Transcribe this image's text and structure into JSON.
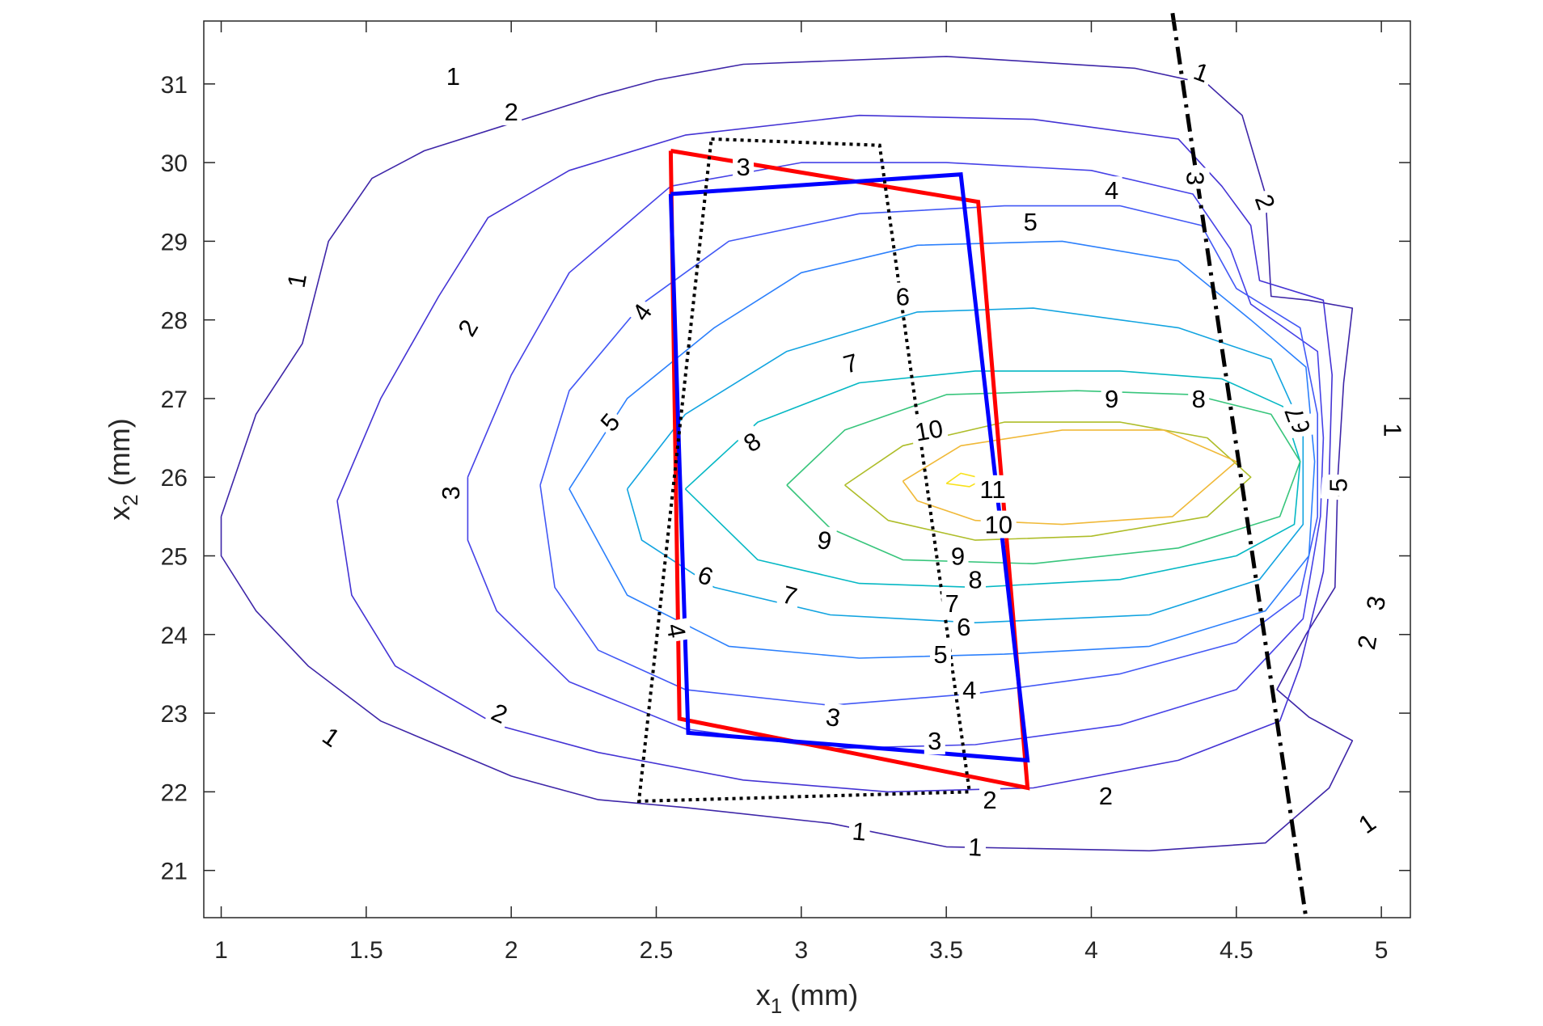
{
  "chart_data": {
    "type": "contour",
    "xlabel": {
      "main": "x",
      "sub": "1",
      "unit": " (mm)"
    },
    "ylabel": {
      "main": "x",
      "sub": "2",
      "unit": " (mm)"
    },
    "xlim": [
      0.94,
      5.1
    ],
    "ylim": [
      20.4,
      31.8
    ],
    "xticks": [
      1,
      1.5,
      2,
      2.5,
      3,
      3.5,
      4,
      4.5,
      5
    ],
    "xtick_labels": [
      "1",
      "1.5",
      "2",
      "2.5",
      "3",
      "3.5",
      "4",
      "4.5",
      "5"
    ],
    "yticks": [
      21,
      22,
      23,
      24,
      25,
      26,
      27,
      28,
      29,
      30,
      31
    ],
    "ytick_labels": [
      "21",
      "22",
      "23",
      "24",
      "25",
      "26",
      "27",
      "28",
      "29",
      "30",
      "31"
    ],
    "grid": false,
    "contour_levels": [
      {
        "level": 1,
        "color": "#3e26a8",
        "points": [
          [
            1.0,
            25.5
          ],
          [
            1.12,
            26.8
          ],
          [
            1.28,
            27.7
          ],
          [
            1.37,
            29.0
          ],
          [
            1.52,
            29.8
          ],
          [
            1.7,
            30.15
          ],
          [
            2.3,
            30.85
          ],
          [
            2.5,
            31.05
          ],
          [
            2.8,
            31.25
          ],
          [
            3.5,
            31.35
          ],
          [
            4.15,
            31.2
          ],
          [
            4.4,
            31.0
          ],
          [
            4.52,
            30.6
          ],
          [
            4.6,
            29.6
          ],
          [
            4.62,
            28.3
          ],
          [
            4.75,
            28.25
          ],
          [
            4.9,
            28.15
          ],
          [
            4.87,
            27.2
          ],
          [
            4.85,
            26.0
          ],
          [
            4.84,
            24.6
          ],
          [
            4.74,
            24.0
          ],
          [
            4.64,
            23.3
          ],
          [
            4.75,
            22.95
          ],
          [
            4.9,
            22.65
          ],
          [
            4.82,
            22.05
          ],
          [
            4.6,
            21.35
          ],
          [
            4.2,
            21.25
          ],
          [
            3.5,
            21.3
          ],
          [
            3.1,
            21.6
          ],
          [
            2.6,
            21.8
          ],
          [
            2.3,
            21.9
          ],
          [
            2.0,
            22.2
          ],
          [
            1.55,
            22.9
          ],
          [
            1.3,
            23.6
          ],
          [
            1.12,
            24.3
          ],
          [
            1.0,
            25.0
          ],
          [
            1.0,
            25.5
          ]
        ]
      },
      {
        "level": 2,
        "color": "#4433d4",
        "points": [
          [
            1.4,
            25.7
          ],
          [
            1.55,
            27.0
          ],
          [
            1.75,
            28.3
          ],
          [
            1.92,
            29.3
          ],
          [
            2.2,
            29.9
          ],
          [
            2.6,
            30.35
          ],
          [
            3.2,
            30.6
          ],
          [
            3.8,
            30.55
          ],
          [
            4.3,
            30.3
          ],
          [
            4.45,
            29.7
          ],
          [
            4.55,
            29.2
          ],
          [
            4.58,
            28.5
          ],
          [
            4.8,
            28.25
          ],
          [
            4.83,
            27.3
          ],
          [
            4.82,
            26.0
          ],
          [
            4.8,
            24.8
          ],
          [
            4.72,
            23.6
          ],
          [
            4.65,
            22.9
          ],
          [
            4.3,
            22.4
          ],
          [
            3.8,
            22.05
          ],
          [
            3.3,
            22.0
          ],
          [
            2.8,
            22.15
          ],
          [
            2.3,
            22.5
          ],
          [
            1.95,
            22.85
          ],
          [
            1.6,
            23.6
          ],
          [
            1.45,
            24.5
          ],
          [
            1.4,
            25.7
          ]
        ]
      },
      {
        "level": 3,
        "color": "#4642e7",
        "points": [
          [
            1.85,
            26.0
          ],
          [
            2.0,
            27.3
          ],
          [
            2.2,
            28.6
          ],
          [
            2.55,
            29.7
          ],
          [
            3.0,
            30.0
          ],
          [
            3.5,
            30.0
          ],
          [
            4.0,
            29.9
          ],
          [
            4.35,
            29.6
          ],
          [
            4.48,
            28.9
          ],
          [
            4.55,
            28.2
          ],
          [
            4.78,
            27.6
          ],
          [
            4.8,
            26.5
          ],
          [
            4.79,
            25.5
          ],
          [
            4.73,
            24.2
          ],
          [
            4.5,
            23.3
          ],
          [
            4.1,
            22.85
          ],
          [
            3.6,
            22.6
          ],
          [
            3.1,
            22.55
          ],
          [
            2.6,
            22.8
          ],
          [
            2.2,
            23.4
          ],
          [
            1.95,
            24.3
          ],
          [
            1.85,
            25.2
          ],
          [
            1.85,
            26.0
          ]
        ]
      },
      {
        "level": 4,
        "color": "#4258f5",
        "points": [
          [
            2.1,
            25.9
          ],
          [
            2.2,
            27.1
          ],
          [
            2.45,
            28.2
          ],
          [
            2.75,
            29.0
          ],
          [
            3.2,
            29.35
          ],
          [
            3.7,
            29.45
          ],
          [
            4.1,
            29.45
          ],
          [
            4.38,
            29.2
          ],
          [
            4.5,
            28.4
          ],
          [
            4.72,
            27.9
          ],
          [
            4.78,
            26.8
          ],
          [
            4.78,
            25.5
          ],
          [
            4.72,
            24.5
          ],
          [
            4.5,
            23.9
          ],
          [
            4.1,
            23.5
          ],
          [
            3.6,
            23.25
          ],
          [
            3.1,
            23.1
          ],
          [
            2.6,
            23.3
          ],
          [
            2.3,
            23.8
          ],
          [
            2.15,
            24.6
          ],
          [
            2.1,
            25.9
          ]
        ]
      },
      {
        "level": 5,
        "color": "#2c80fc",
        "points": [
          [
            2.2,
            25.85
          ],
          [
            2.4,
            27.0
          ],
          [
            2.7,
            27.9
          ],
          [
            3.0,
            28.6
          ],
          [
            3.4,
            28.95
          ],
          [
            3.9,
            29.0
          ],
          [
            4.3,
            28.75
          ],
          [
            4.55,
            28.0
          ],
          [
            4.74,
            27.4
          ],
          [
            4.77,
            26.2
          ],
          [
            4.75,
            25.0
          ],
          [
            4.6,
            24.3
          ],
          [
            4.2,
            23.85
          ],
          [
            3.7,
            23.75
          ],
          [
            3.2,
            23.7
          ],
          [
            2.75,
            23.85
          ],
          [
            2.4,
            24.5
          ],
          [
            2.2,
            25.85
          ]
        ]
      },
      {
        "level": 6,
        "color": "#12a4e0",
        "points": [
          [
            2.4,
            25.85
          ],
          [
            2.6,
            26.8
          ],
          [
            2.95,
            27.6
          ],
          [
            3.4,
            28.1
          ],
          [
            3.8,
            28.15
          ],
          [
            4.3,
            27.9
          ],
          [
            4.62,
            27.5
          ],
          [
            4.73,
            26.6
          ],
          [
            4.73,
            25.4
          ],
          [
            4.58,
            24.7
          ],
          [
            4.2,
            24.25
          ],
          [
            3.6,
            24.15
          ],
          [
            3.1,
            24.25
          ],
          [
            2.7,
            24.6
          ],
          [
            2.45,
            25.2
          ],
          [
            2.4,
            25.85
          ]
        ]
      },
      {
        "level": 7,
        "color": "#06b8c4",
        "points": [
          [
            2.6,
            25.85
          ],
          [
            2.85,
            26.7
          ],
          [
            3.2,
            27.2
          ],
          [
            3.6,
            27.35
          ],
          [
            4.1,
            27.35
          ],
          [
            4.45,
            27.25
          ],
          [
            4.66,
            26.9
          ],
          [
            4.72,
            26.2
          ],
          [
            4.7,
            25.4
          ],
          [
            4.5,
            25.0
          ],
          [
            4.1,
            24.7
          ],
          [
            3.6,
            24.6
          ],
          [
            3.2,
            24.65
          ],
          [
            2.85,
            24.95
          ],
          [
            2.6,
            25.85
          ]
        ]
      },
      {
        "level": 8,
        "color": "#38c57c",
        "points": [
          [
            2.95,
            25.9
          ],
          [
            3.15,
            26.6
          ],
          [
            3.5,
            27.05
          ],
          [
            3.95,
            27.1
          ],
          [
            4.35,
            27.05
          ],
          [
            4.62,
            26.8
          ],
          [
            4.72,
            26.2
          ],
          [
            4.65,
            25.5
          ],
          [
            4.3,
            25.1
          ],
          [
            3.8,
            24.9
          ],
          [
            3.35,
            24.95
          ],
          [
            3.1,
            25.35
          ],
          [
            2.95,
            25.9
          ]
        ]
      },
      {
        "level": 9,
        "color": "#aebd29",
        "points": [
          [
            3.15,
            25.9
          ],
          [
            3.35,
            26.4
          ],
          [
            3.7,
            26.7
          ],
          [
            4.1,
            26.7
          ],
          [
            4.4,
            26.5
          ],
          [
            4.55,
            26.0
          ],
          [
            4.4,
            25.5
          ],
          [
            4.0,
            25.25
          ],
          [
            3.6,
            25.2
          ],
          [
            3.3,
            25.45
          ],
          [
            3.15,
            25.9
          ]
        ]
      },
      {
        "level": 10,
        "color": "#f0b938",
        "points": [
          [
            3.35,
            25.95
          ],
          [
            3.55,
            26.4
          ],
          [
            3.9,
            26.6
          ],
          [
            4.25,
            26.6
          ],
          [
            4.5,
            26.2
          ],
          [
            4.28,
            25.5
          ],
          [
            3.9,
            25.4
          ],
          [
            3.6,
            25.45
          ],
          [
            3.4,
            25.7
          ],
          [
            3.35,
            25.95
          ]
        ]
      },
      {
        "level": 11,
        "color": "#f8e118",
        "points": [
          [
            3.5,
            25.92
          ],
          [
            3.55,
            26.05
          ],
          [
            3.63,
            25.98
          ],
          [
            3.58,
            25.88
          ],
          [
            3.5,
            25.92
          ]
        ]
      }
    ],
    "contour_labels": [
      {
        "text": "1",
        "x": 1.8,
        "y": 31.1,
        "angle": 0
      },
      {
        "text": "1",
        "x": 4.38,
        "y": 31.15,
        "angle": 20
      },
      {
        "text": "1",
        "x": 1.26,
        "y": 28.5,
        "angle": -80
      },
      {
        "text": "1",
        "x": 1.38,
        "y": 22.7,
        "angle": 35
      },
      {
        "text": "1",
        "x": 3.2,
        "y": 21.5,
        "angle": 5
      },
      {
        "text": "1",
        "x": 3.6,
        "y": 21.3,
        "angle": 3
      },
      {
        "text": "1",
        "x": 4.95,
        "y": 21.6,
        "angle": -35
      },
      {
        "text": "1",
        "x": 5.04,
        "y": 26.6,
        "angle": 90
      },
      {
        "text": "2",
        "x": 2.0,
        "y": 30.65,
        "angle": 0
      },
      {
        "text": "2",
        "x": 4.6,
        "y": 29.5,
        "angle": 70
      },
      {
        "text": "2",
        "x": 1.85,
        "y": 27.9,
        "angle": -60
      },
      {
        "text": "2",
        "x": 1.96,
        "y": 23.0,
        "angle": 25
      },
      {
        "text": "2",
        "x": 3.65,
        "y": 21.9,
        "angle": 0
      },
      {
        "text": "2",
        "x": 4.05,
        "y": 21.95,
        "angle": 0
      },
      {
        "text": "2",
        "x": 4.95,
        "y": 23.9,
        "angle": -80
      },
      {
        "text": "3",
        "x": 2.8,
        "y": 29.95,
        "angle": 0
      },
      {
        "text": "3",
        "x": 4.36,
        "y": 29.8,
        "angle": 90
      },
      {
        "text": "3",
        "x": 1.79,
        "y": 25.8,
        "angle": -90
      },
      {
        "text": "3",
        "x": 3.11,
        "y": 22.95,
        "angle": 10
      },
      {
        "text": "3",
        "x": 3.46,
        "y": 22.65,
        "angle": 0
      },
      {
        "text": "3",
        "x": 4.98,
        "y": 24.4,
        "angle": -80
      },
      {
        "text": "4",
        "x": 4.07,
        "y": 29.65,
        "angle": 0
      },
      {
        "text": "4",
        "x": 2.45,
        "y": 28.1,
        "angle": -55
      },
      {
        "text": "4",
        "x": 2.57,
        "y": 24.05,
        "angle": 80
      },
      {
        "text": "4",
        "x": 3.58,
        "y": 23.3,
        "angle": 0
      },
      {
        "text": "4",
        "x": 4.84,
        "y": 25.85,
        "angle": -85
      },
      {
        "text": "5",
        "x": 3.79,
        "y": 29.25,
        "angle": 0
      },
      {
        "text": "5",
        "x": 2.34,
        "y": 26.7,
        "angle": -50
      },
      {
        "text": "5",
        "x": 3.48,
        "y": 23.75,
        "angle": 0
      },
      {
        "text": "5",
        "x": 4.85,
        "y": 25.9,
        "angle": -90
      },
      {
        "text": "6",
        "x": 3.35,
        "y": 28.3,
        "angle": 0
      },
      {
        "text": "6",
        "x": 2.67,
        "y": 24.75,
        "angle": 20
      },
      {
        "text": "6",
        "x": 3.56,
        "y": 24.1,
        "angle": 0
      },
      {
        "text": "6",
        "x": 4.72,
        "y": 26.65,
        "angle": -100
      },
      {
        "text": "7",
        "x": 3.17,
        "y": 27.45,
        "angle": -15
      },
      {
        "text": "7",
        "x": 2.96,
        "y": 24.5,
        "angle": 15
      },
      {
        "text": "7",
        "x": 3.52,
        "y": 24.4,
        "angle": 0
      },
      {
        "text": "7",
        "x": 4.7,
        "y": 26.8,
        "angle": -110
      },
      {
        "text": "8",
        "x": 2.83,
        "y": 26.45,
        "angle": -35
      },
      {
        "text": "8",
        "x": 3.6,
        "y": 24.7,
        "angle": 0
      },
      {
        "text": "8",
        "x": 4.37,
        "y": 27.0,
        "angle": 0
      },
      {
        "text": "9",
        "x": 3.08,
        "y": 25.2,
        "angle": 10
      },
      {
        "text": "9",
        "x": 3.54,
        "y": 25.0,
        "angle": 0
      },
      {
        "text": "9",
        "x": 4.07,
        "y": 27.0,
        "angle": 0
      },
      {
        "text": "10",
        "x": 3.44,
        "y": 26.6,
        "angle": -10
      },
      {
        "text": "10",
        "x": 3.68,
        "y": 25.4,
        "angle": 0
      },
      {
        "text": "11",
        "x": 3.66,
        "y": 25.85,
        "angle": 0
      }
    ],
    "overlays": [
      {
        "style": "red-solid",
        "color": "#ff0000",
        "points": [
          [
            2.55,
            30.15
          ],
          [
            3.61,
            29.5
          ],
          [
            3.78,
            22.05
          ],
          [
            2.58,
            22.93
          ],
          [
            2.55,
            30.15
          ]
        ]
      },
      {
        "style": "blue-solid",
        "color": "#0000ff",
        "points": [
          [
            2.55,
            29.6
          ],
          [
            3.55,
            29.85
          ],
          [
            3.78,
            22.4
          ],
          [
            2.61,
            22.75
          ],
          [
            2.55,
            29.6
          ]
        ]
      },
      {
        "style": "black-dotted",
        "color": "#000000",
        "points": [
          [
            2.69,
            30.3
          ],
          [
            3.27,
            30.22
          ],
          [
            3.58,
            22.0
          ],
          [
            2.44,
            21.88
          ],
          [
            2.69,
            30.3
          ]
        ]
      },
      {
        "style": "black-dashdot",
        "color": "#000000",
        "points": [
          [
            4.28,
            31.9
          ],
          [
            4.74,
            20.4
          ]
        ]
      }
    ]
  }
}
